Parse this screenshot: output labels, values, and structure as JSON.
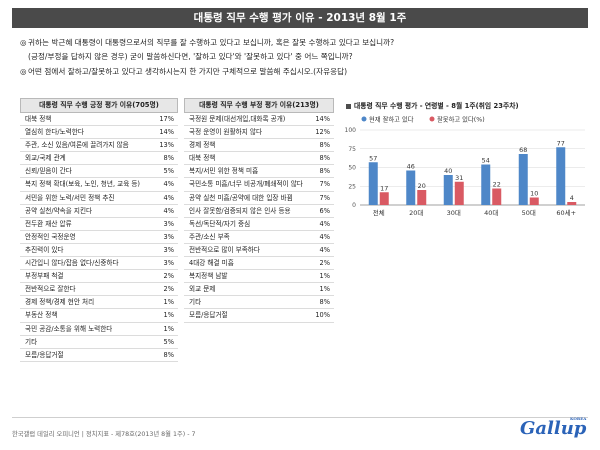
{
  "header": {
    "title": "대통령 직무 수행 평가 이유 - 2013년 8월 1주"
  },
  "questions": {
    "q1_line1": "귀하는 박근혜 대통령이 대통령으로서의 직무를 잘 수행하고 있다고 보십니까, 혹은 잘못 수행하고 있다고 보십니까?",
    "q1_line2": "(긍정/부정을 답하지 않은 경우) 굳이 말씀하신다면, '잘하고 있다'와 '잘못하고 있다' 중 어느 쪽입니까?",
    "q2_line1": "어떤 점에서 잘하고/잘못하고 있다고 생각하시는지 한 가지만 구체적으로 말씀해 주십시오.(자유응답)"
  },
  "positive_table": {
    "header": "대통령 직무 수행 긍정 평가 이유(705명)",
    "rows": [
      {
        "label": "대북 정책",
        "value": "17%"
      },
      {
        "label": "열심히 한다/노력한다",
        "value": "14%"
      },
      {
        "label": "주관, 소신 있음/여론에 끌려가지 않음",
        "value": "13%"
      },
      {
        "label": "외교/국제 관계",
        "value": "8%"
      },
      {
        "label": "신뢰/믿음이 간다",
        "value": "5%"
      },
      {
        "label": "복지 정책 확대(보육, 노인, 청년, 교육 등)",
        "value": "4%"
      },
      {
        "label": "서민을 위한 노력/서민 정책 추진",
        "value": "4%"
      },
      {
        "label": "공약 실천/약속을 지킨다",
        "value": "4%"
      },
      {
        "label": "전두환 재산 압류",
        "value": "3%"
      },
      {
        "label": "안정적인 국정운영",
        "value": "3%"
      },
      {
        "label": "추진력이 있다",
        "value": "3%"
      },
      {
        "label": "시간입니 않다/잡음 없다/신중하다",
        "value": "3%"
      },
      {
        "label": "부정부패 척결",
        "value": "2%"
      },
      {
        "label": "전반적으로 잘한다",
        "value": "2%"
      },
      {
        "label": "경제 정책/경제 현안 처리",
        "value": "1%"
      },
      {
        "label": "부동산 정책",
        "value": "1%"
      },
      {
        "label": "국민 공감/소통을 위해 노력한다",
        "value": "1%"
      },
      {
        "label": "기타",
        "value": "5%"
      },
      {
        "label": "모름/응답거절",
        "value": "8%"
      }
    ]
  },
  "negative_table": {
    "header": "대통령 직무 수행 부정 평가 이유(213명)",
    "rows": [
      {
        "label": "국정원 문제(대선개입,대화록 공개)",
        "value": "14%"
      },
      {
        "label": "국정 운영이 원활하지 않다",
        "value": "12%"
      },
      {
        "label": "경제 정책",
        "value": "8%"
      },
      {
        "label": "대북 정책",
        "value": "8%"
      },
      {
        "label": "복지/서민 위한 정책 미흡",
        "value": "8%"
      },
      {
        "label": "국민소통 미흡/너무 비공개/폐쇄적이 않다",
        "value": "7%"
      },
      {
        "label": "공약 실천 미흡/공약에 대한 입장 바뀜",
        "value": "7%"
      },
      {
        "label": "인사 잘못함/검증되지 않은 인사 등용",
        "value": "6%"
      },
      {
        "label": "독선/독단적/자기 중심",
        "value": "4%"
      },
      {
        "label": "주관/소신 부족",
        "value": "4%"
      },
      {
        "label": "전반적으로 많이 부족하다",
        "value": "4%"
      },
      {
        "label": "4대강 해결 미흡",
        "value": "2%"
      },
      {
        "label": "복지정책 남발",
        "value": "1%"
      },
      {
        "label": "외교 문제",
        "value": "1%"
      },
      {
        "label": "기타",
        "value": "8%"
      },
      {
        "label": "모름/응답거절",
        "value": "10%"
      }
    ]
  },
  "chart_data": {
    "type": "bar",
    "title": "대통령 직무 수행 평가 - 연령별 - 8월 1주(취임 23주차)",
    "categories": [
      "전체",
      "20대",
      "30대",
      "40대",
      "50대",
      "60세+"
    ],
    "series": [
      {
        "name": "현재 잘하고 있다",
        "values": [
          57,
          46,
          40,
          54,
          68,
          77
        ],
        "color": "#4e87c8"
      },
      {
        "name": "잘못하고 있다(%)",
        "values": [
          17,
          20,
          31,
          22,
          10,
          4
        ],
        "color": "#d95a63"
      }
    ],
    "legend_position": "top",
    "yticks": [
      0,
      25,
      50,
      75,
      100
    ],
    "ylim": [
      0,
      100
    ],
    "grid": true
  },
  "footer": {
    "text": "한국갤럽 데일리 오피니언 | 정치지표 - 제78호(2013년 8월 1주) - 7"
  },
  "logo": {
    "text": "Gallup",
    "small": "KOREA"
  }
}
